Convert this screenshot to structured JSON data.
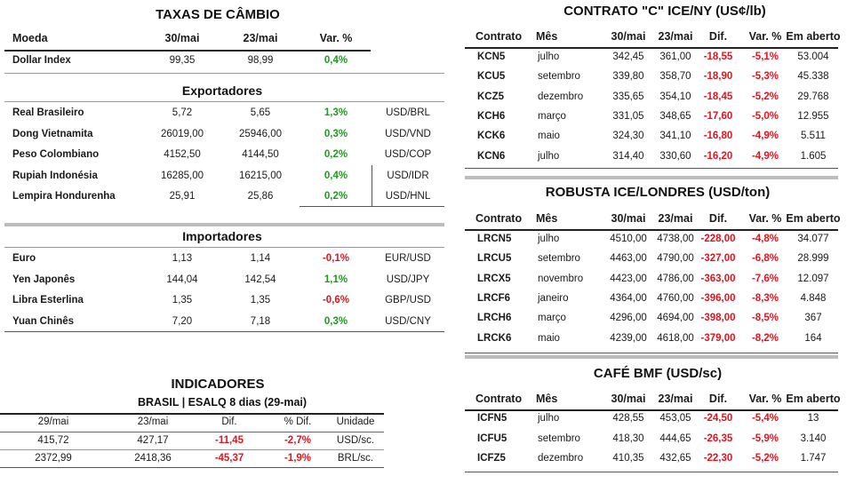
{
  "cambio": {
    "title": "TAXAS DE CÂMBIO",
    "headers": [
      "Moeda",
      "30/mai",
      "23/mai",
      "Var. %"
    ],
    "dollar_index": {
      "name": "Dollar Index",
      "v1": "99,35",
      "v2": "98,99",
      "var": "0,4%",
      "var_color": "green"
    },
    "exportadores_title": "Exportadores",
    "exportadores": [
      {
        "name": "Real Brasileiro",
        "v1": "5,72",
        "v2": "5,65",
        "var": "1,3%",
        "var_color": "green",
        "pair": "USD/BRL"
      },
      {
        "name": "Dong Vietnamita",
        "v1": "26019,00",
        "v2": "25946,00",
        "var": "0,3%",
        "var_color": "green",
        "pair": "USD/VND"
      },
      {
        "name": "Peso Colombiano",
        "v1": "4152,50",
        "v2": "4144,50",
        "var": "0,2%",
        "var_color": "green",
        "pair": "USD/COP"
      },
      {
        "name": "Rupiah Indonésia",
        "v1": "16285,00",
        "v2": "16215,00",
        "var": "0,4%",
        "var_color": "green",
        "pair": "USD/IDR"
      },
      {
        "name": "Lempira Hondurenha",
        "v1": "25,91",
        "v2": "25,86",
        "var": "0,2%",
        "var_color": "green",
        "pair": "USD/HNL"
      }
    ],
    "importadores_title": "Importadores",
    "importadores": [
      {
        "name": "Euro",
        "v1": "1,13",
        "v2": "1,14",
        "var": "-0,1%",
        "var_color": "red",
        "pair": "EUR/USD"
      },
      {
        "name": "Yen Japonês",
        "v1": "144,04",
        "v2": "142,54",
        "var": "1,1%",
        "var_color": "green",
        "pair": "USD/JPY"
      },
      {
        "name": "Libra Esterlina",
        "v1": "1,35",
        "v2": "1,35",
        "var": "-0,6%",
        "var_color": "red",
        "pair": "GBP/USD"
      },
      {
        "name": "Yuan Chinês",
        "v1": "7,20",
        "v2": "7,18",
        "var": "0,3%",
        "var_color": "green",
        "pair": "USD/CNY"
      }
    ]
  },
  "indicadores": {
    "title": "INDICADORES",
    "subtitle": "BRASIL | ESALQ 8 dias (29-mai)",
    "headers": [
      "29/mai",
      "23/mai",
      "Dif.",
      "% Dif.",
      "Unidade"
    ],
    "rows": [
      {
        "c1": "415,72",
        "c2": "427,17",
        "dif": "-11,45",
        "pdif": "-2,7%",
        "unit": "USD/sc."
      },
      {
        "c1": "2372,99",
        "c2": "2418,36",
        "dif": "-45,37",
        "pdif": "-1,9%",
        "unit": "BRL/sc."
      }
    ]
  },
  "ice_ny": {
    "title": "CONTRATO \"C\" ICE/NY (US¢/lb)",
    "headers": [
      "Contrato",
      "Mês",
      "30/mai",
      "23/mai",
      "Dif.",
      "Var. %",
      "Em aberto"
    ],
    "rows": [
      {
        "contrato": "KCN5",
        "mes": "julho",
        "v1": "342,45",
        "v2": "361,00",
        "dif": "-18,55",
        "var": "-5,1%",
        "aberto": "53.004"
      },
      {
        "contrato": "KCU5",
        "mes": "setembro",
        "v1": "339,80",
        "v2": "358,70",
        "dif": "-18,90",
        "var": "-5,3%",
        "aberto": "45.338"
      },
      {
        "contrato": "KCZ5",
        "mes": "dezembro",
        "v1": "335,65",
        "v2": "354,10",
        "dif": "-18,45",
        "var": "-5,2%",
        "aberto": "29.768"
      },
      {
        "contrato": "KCH6",
        "mes": "março",
        "v1": "331,05",
        "v2": "348,65",
        "dif": "-17,60",
        "var": "-5,0%",
        "aberto": "12.955"
      },
      {
        "contrato": "KCK6",
        "mes": "maio",
        "v1": "324,30",
        "v2": "341,10",
        "dif": "-16,80",
        "var": "-4,9%",
        "aberto": "5.511"
      },
      {
        "contrato": "KCN6",
        "mes": "julho",
        "v1": "314,40",
        "v2": "330,60",
        "dif": "-16,20",
        "var": "-4,9%",
        "aberto": "1.605"
      }
    ]
  },
  "robusta": {
    "title": "ROBUSTA ICE/LONDRES (USD/ton)",
    "headers": [
      "Contrato",
      "Mês",
      "30/mai",
      "23/mai",
      "Dif.",
      "Var. %",
      "Em aberto"
    ],
    "rows": [
      {
        "contrato": "LRCN5",
        "mes": "julho",
        "v1": "4510,00",
        "v2": "4738,00",
        "dif": "-228,00",
        "var": "-4,8%",
        "aberto": "34.077"
      },
      {
        "contrato": "LRCU5",
        "mes": "setembro",
        "v1": "4463,00",
        "v2": "4790,00",
        "dif": "-327,00",
        "var": "-6,8%",
        "aberto": "28.999"
      },
      {
        "contrato": "LRCX5",
        "mes": "novembro",
        "v1": "4423,00",
        "v2": "4786,00",
        "dif": "-363,00",
        "var": "-7,6%",
        "aberto": "12.097"
      },
      {
        "contrato": "LRCF6",
        "mes": "janeiro",
        "v1": "4364,00",
        "v2": "4760,00",
        "dif": "-396,00",
        "var": "-8,3%",
        "aberto": "4.848"
      },
      {
        "contrato": "LRCH6",
        "mes": "março",
        "v1": "4296,00",
        "v2": "4694,00",
        "dif": "-398,00",
        "var": "-8,5%",
        "aberto": "367"
      },
      {
        "contrato": "LRCK6",
        "mes": "maio",
        "v1": "4239,00",
        "v2": "4618,00",
        "dif": "-379,00",
        "var": "-8,2%",
        "aberto": "164"
      }
    ]
  },
  "bmf": {
    "title": "CAFÉ BMF (USD/sc)",
    "headers": [
      "Contrato",
      "Mês",
      "30/mai",
      "23/mai",
      "Dif.",
      "Var. %",
      "Em aberto"
    ],
    "rows": [
      {
        "contrato": "ICFN5",
        "mes": "julho",
        "v1": "428,55",
        "v2": "453,05",
        "dif": "-24,50",
        "var": "-5,4%",
        "aberto": "13"
      },
      {
        "contrato": "ICFU5",
        "mes": "setembro",
        "v1": "418,30",
        "v2": "444,65",
        "dif": "-26,35",
        "var": "-5,9%",
        "aberto": "3.140"
      },
      {
        "contrato": "ICFZ5",
        "mes": "dezembro",
        "v1": "410,35",
        "v2": "432,65",
        "dif": "-22,30",
        "var": "-5,2%",
        "aberto": "1.747"
      }
    ]
  },
  "colors": {
    "positive": "#1f9a1f",
    "negative": "#e0141e",
    "divider": "#bdbdbd"
  }
}
